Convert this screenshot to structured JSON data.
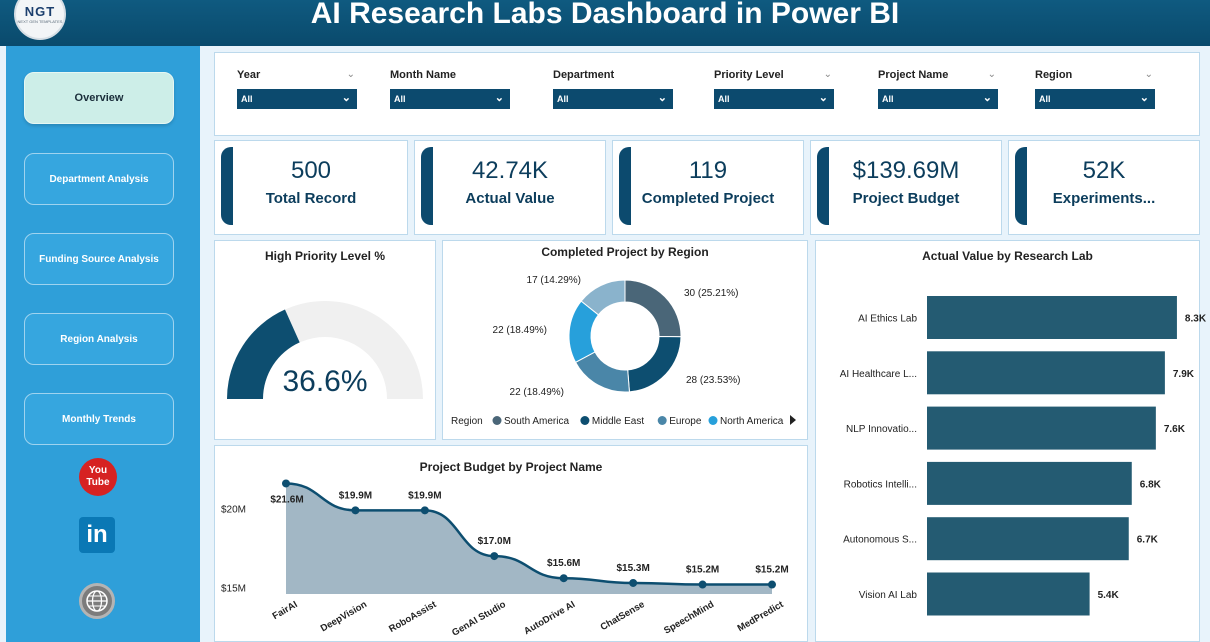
{
  "header": {
    "logo_text": "NGT",
    "logo_subtext": "NEXT GEN TEMPLATES",
    "title": "AI Research Labs Dashboard in Power BI"
  },
  "sidebar": {
    "items": [
      {
        "label": "Overview",
        "active": true
      },
      {
        "label": "Department Analysis",
        "active": false
      },
      {
        "label": "Funding Source Analysis",
        "active": false
      },
      {
        "label": "Region Analysis",
        "active": false
      },
      {
        "label": "Monthly Trends",
        "active": false
      }
    ],
    "social": {
      "youtube_line1": "You",
      "youtube_line2": "Tube",
      "linkedin": "in",
      "youtube_icon": "youtube-icon",
      "linkedin_icon": "linkedin-icon",
      "website_icon": "globe-icon"
    }
  },
  "filters": [
    {
      "label": "Year",
      "value": "All"
    },
    {
      "label": "Month Name",
      "value": "All"
    },
    {
      "label": "Department",
      "value": "All"
    },
    {
      "label": "Priority Level",
      "value": "All"
    },
    {
      "label": "Project Name",
      "value": "All"
    },
    {
      "label": "Region",
      "value": "All"
    }
  ],
  "kpis": [
    {
      "value": "500",
      "label": "Total Record"
    },
    {
      "value": "42.74K",
      "label": "Actual Value"
    },
    {
      "value": "119",
      "label": "Completed Project"
    },
    {
      "value": "$139.69M",
      "label": "Project Budget"
    },
    {
      "value": "52K",
      "label": "Experiments..."
    }
  ],
  "colors": {
    "primary": "#0c4a6e",
    "sidebar": "#2f9fd9",
    "bar": "#245b72",
    "area": "#9db3c2"
  },
  "chart_data": [
    {
      "type": "gauge",
      "title": "High Priority Level %",
      "value": 36.6,
      "value_label": "36.6%",
      "range": [
        0,
        100
      ]
    },
    {
      "type": "pie",
      "title": "Completed Project by Region",
      "legend_title": "Region",
      "legend_position": "bottom",
      "visible_legend": [
        "South America",
        "Middle East",
        "Europe",
        "North America"
      ],
      "slices": [
        {
          "value": 30,
          "label": "30 (25.21%)",
          "color": "#4a6678"
        },
        {
          "value": 28,
          "label": "28 (23.53%)",
          "color": "#0d4e70"
        },
        {
          "value": 22,
          "label": "22 (18.49%)",
          "color": "#4a86a8"
        },
        {
          "value": 22,
          "label": "22 (18.49%)",
          "color": "#27a0db"
        },
        {
          "value": 17,
          "label": "17 (14.29%)",
          "color": "#8ab3cc"
        }
      ],
      "legend_colors": [
        "#4a6678",
        "#0d4e70",
        "#4a86a8",
        "#27a0db"
      ]
    },
    {
      "type": "area",
      "title": "Project Budget by Project Name",
      "categories": [
        "FairAI",
        "DeepVision",
        "RoboAssist",
        "GenAI Studio",
        "AutoDrive AI",
        "ChatSense",
        "SpeechMind",
        "MedPredict"
      ],
      "values": [
        21.6,
        19.9,
        19.9,
        17.0,
        15.6,
        15.3,
        15.2,
        15.2
      ],
      "data_labels": [
        "$21.6M",
        "$19.9M",
        "$19.9M",
        "$17.0M",
        "$15.6M",
        "$15.3M",
        "$15.2M",
        "$15.2M"
      ],
      "y_ticks": [
        {
          "value": 20,
          "label": "$20M"
        },
        {
          "value": 15,
          "label": "$15M"
        }
      ],
      "ylim": [
        14.6,
        22.2
      ]
    },
    {
      "type": "bar",
      "orientation": "horizontal",
      "title": "Actual Value by Research Lab",
      "categories": [
        "AI Ethics Lab",
        "AI Healthcare L...",
        "NLP Innovatio...",
        "Robotics Intelli...",
        "Autonomous S...",
        "Vision AI Lab"
      ],
      "values": [
        8.3,
        7.9,
        7.6,
        6.8,
        6.7,
        5.4
      ],
      "data_labels": [
        "8.3K",
        "7.9K",
        "7.6K",
        "6.8K",
        "6.7K",
        "5.4K"
      ],
      "xlim": [
        0,
        8.9
      ]
    }
  ]
}
